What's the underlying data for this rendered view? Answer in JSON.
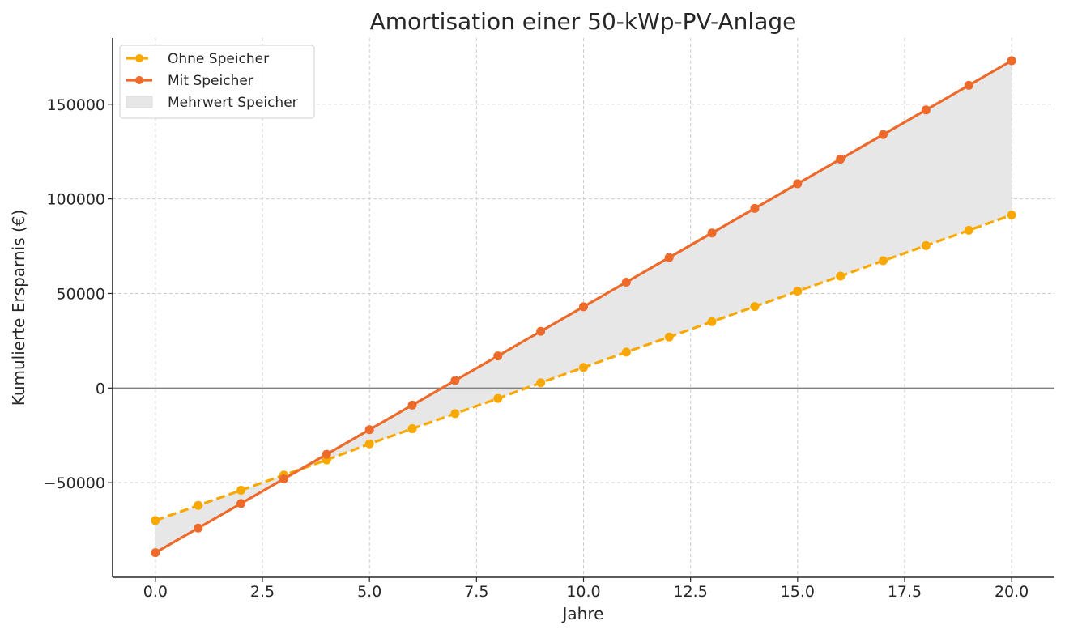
{
  "chart_data": {
    "type": "line",
    "title": "Amortisation einer 50-kWp-PV-Anlage",
    "xlabel": "Jahre",
    "ylabel": "Kumulierte Ersparnis (€)",
    "xlim": [
      -1,
      21
    ],
    "ylim": [
      -100000,
      185000
    ],
    "xticks": [
      0.0,
      2.5,
      5.0,
      7.5,
      10.0,
      12.5,
      15.0,
      17.5,
      20.0
    ],
    "xtick_labels": [
      "0.0",
      "2.5",
      "5.0",
      "7.5",
      "10.0",
      "12.5",
      "15.0",
      "17.5",
      "20.0"
    ],
    "yticks": [
      -50000,
      0,
      50000,
      100000,
      150000
    ],
    "ytick_labels": [
      "−50000",
      "0",
      "50000",
      "100000",
      "150000"
    ],
    "grid": true,
    "zero_line": true,
    "legend_position": "top-left",
    "x": [
      0,
      1,
      2,
      3,
      4,
      5,
      6,
      7,
      8,
      9,
      10,
      11,
      12,
      13,
      14,
      15,
      16,
      17,
      18,
      19,
      20
    ],
    "series": [
      {
        "name": "Ohne Speicher",
        "color": "#f9a800",
        "line_style": "dashed",
        "marker": "circle",
        "values": [
          -70000,
          -62000,
          -54000,
          -46000,
          -38000,
          -29500,
          -21500,
          -13500,
          -5500,
          2800,
          10900,
          19000,
          27000,
          35100,
          43100,
          51200,
          59200,
          67300,
          75300,
          83400,
          91500
        ]
      },
      {
        "name": "Mit Speicher",
        "color": "#ee6a2a",
        "line_style": "solid",
        "marker": "circle",
        "values": [
          -87000,
          -74000,
          -61000,
          -48000,
          -35000,
          -22000,
          -9000,
          4000,
          17000,
          30000,
          43000,
          56000,
          69000,
          82000,
          95000,
          108000,
          121000,
          134000,
          147000,
          160000,
          173000
        ]
      }
    ],
    "fill_between": {
      "name": "Mehrwert Speicher",
      "color": "#e7e7e7",
      "between": [
        "Ohne Speicher",
        "Mit Speicher"
      ]
    }
  }
}
